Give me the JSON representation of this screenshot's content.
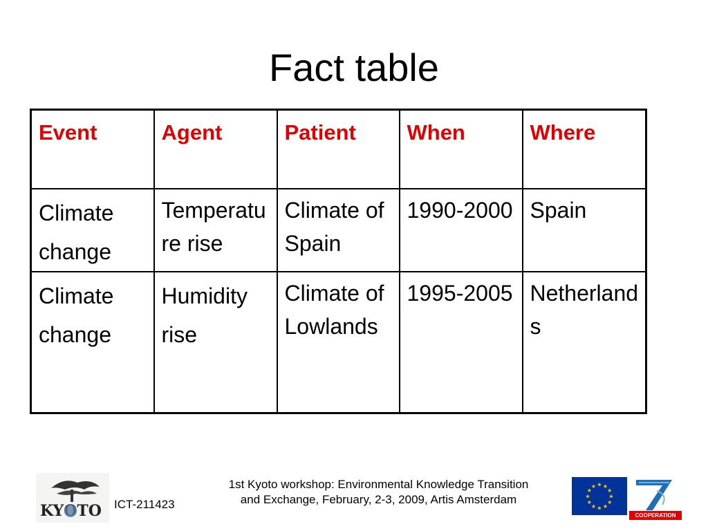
{
  "slide": {
    "title": "Fact table"
  },
  "table": {
    "headers": [
      "Event",
      "Agent",
      "Patient",
      "When",
      "Where"
    ],
    "rows": [
      [
        "Climate change",
        "Temperature rise",
        "Climate of Spain",
        "1990-2000",
        "Spain"
      ],
      [
        "Climate change",
        "Humidity rise",
        "Climate of Lowlands",
        "1995-2005",
        "Netherlands"
      ]
    ]
  },
  "footer": {
    "logo_text": "KYOTO",
    "project_code": "ICT-211423",
    "workshop_line1": "1st Kyoto workshop: Environmental Knowledge Transition",
    "workshop_line2": "and Exchange, February, 2-3, 2009, Artis Amsterdam",
    "fp7_label": "COOPERATION"
  },
  "colors": {
    "header_text": "#e00000",
    "eu_blue": "#003399",
    "eu_star": "#ffcc00"
  },
  "icons": [
    "kyoto-logo",
    "eu-flag-icon",
    "fp7-logo"
  ]
}
